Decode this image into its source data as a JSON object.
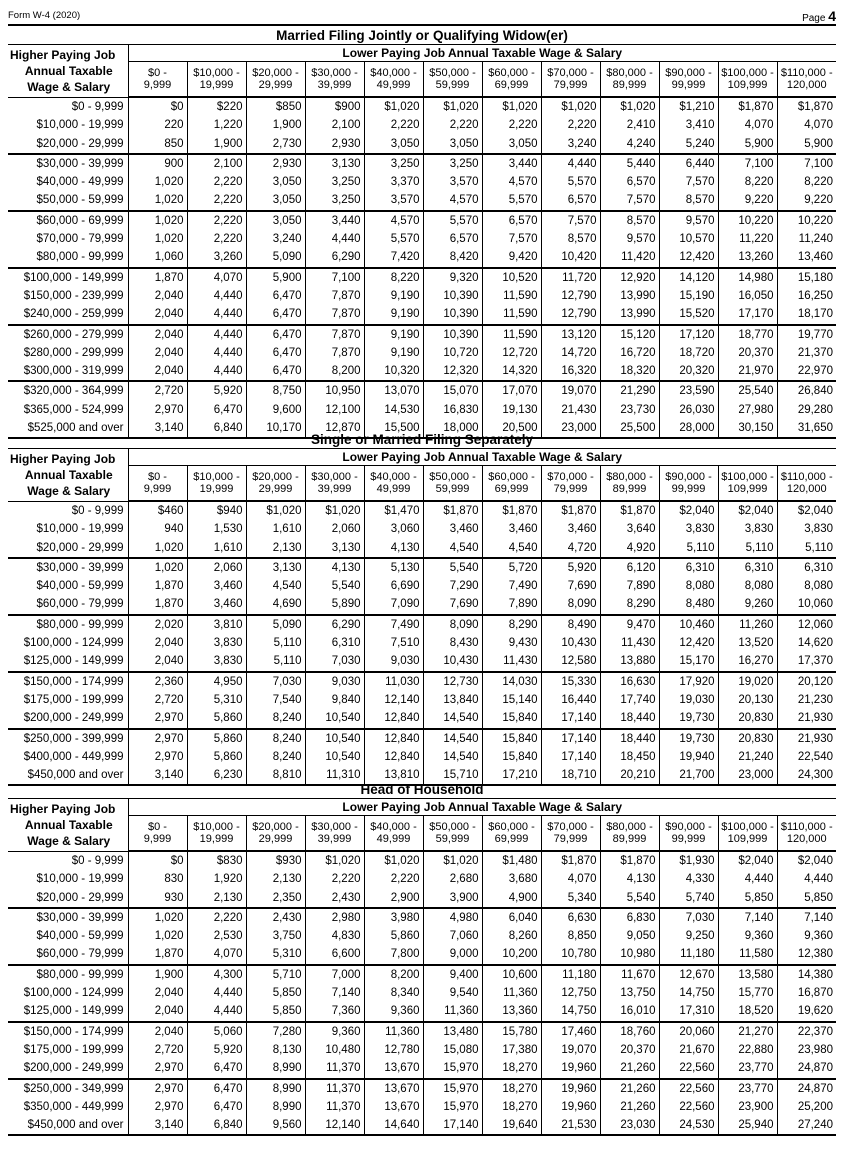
{
  "header": {
    "form": "Form W-4 (2020)",
    "page_word": "Page",
    "page_num": "4"
  },
  "col_header_corner": [
    "Higher Paying Job",
    "Annual Taxable",
    "Wage & Salary"
  ],
  "lower_header": "Lower Paying Job Annual Taxable Wage & Salary",
  "columns": [
    [
      "$0 -",
      "9,999"
    ],
    [
      "$10,000 -",
      "19,999"
    ],
    [
      "$20,000 -",
      "29,999"
    ],
    [
      "$30,000 -",
      "39,999"
    ],
    [
      "$40,000 -",
      "49,999"
    ],
    [
      "$50,000 -",
      "59,999"
    ],
    [
      "$60,000 -",
      "69,999"
    ],
    [
      "$70,000 -",
      "79,999"
    ],
    [
      "$80,000 -",
      "89,999"
    ],
    [
      "$90,000 -",
      "99,999"
    ],
    [
      "$100,000 -",
      "109,999"
    ],
    [
      "$110,000 -",
      "120,000"
    ]
  ],
  "sections": [
    {
      "title": "Married Filing Jointly or Qualifying Widow(er)",
      "groups": [
        3,
        3,
        3,
        3,
        3,
        3,
        3
      ],
      "rows": [
        {
          "label": "$0 -   9,999",
          "values": [
            "$0",
            "$220",
            "$850",
            "$900",
            "$1,020",
            "$1,020",
            "$1,020",
            "$1,020",
            "$1,020",
            "$1,210",
            "$1,870",
            "$1,870"
          ]
        },
        {
          "label": "$10,000 -  19,999",
          "values": [
            "220",
            "1,220",
            "1,900",
            "2,100",
            "2,220",
            "2,220",
            "2,220",
            "2,220",
            "2,410",
            "3,410",
            "4,070",
            "4,070"
          ]
        },
        {
          "label": "$20,000 -  29,999",
          "values": [
            "850",
            "1,900",
            "2,730",
            "2,930",
            "3,050",
            "3,050",
            "3,050",
            "3,240",
            "4,240",
            "5,240",
            "5,900",
            "5,900"
          ]
        },
        {
          "label": "$30,000 -  39,999",
          "values": [
            "900",
            "2,100",
            "2,930",
            "3,130",
            "3,250",
            "3,250",
            "3,440",
            "4,440",
            "5,440",
            "6,440",
            "7,100",
            "7,100"
          ]
        },
        {
          "label": "$40,000 -  49,999",
          "values": [
            "1,020",
            "2,220",
            "3,050",
            "3,250",
            "3,370",
            "3,570",
            "4,570",
            "5,570",
            "6,570",
            "7,570",
            "8,220",
            "8,220"
          ]
        },
        {
          "label": "$50,000 -  59,999",
          "values": [
            "1,020",
            "2,220",
            "3,050",
            "3,250",
            "3,570",
            "4,570",
            "5,570",
            "6,570",
            "7,570",
            "8,570",
            "9,220",
            "9,220"
          ]
        },
        {
          "label": "$60,000 -  69,999",
          "values": [
            "1,020",
            "2,220",
            "3,050",
            "3,440",
            "4,570",
            "5,570",
            "6,570",
            "7,570",
            "8,570",
            "9,570",
            "10,220",
            "10,220"
          ]
        },
        {
          "label": "$70,000 -  79,999",
          "values": [
            "1,020",
            "2,220",
            "3,240",
            "4,440",
            "5,570",
            "6,570",
            "7,570",
            "8,570",
            "9,570",
            "10,570",
            "11,220",
            "11,240"
          ]
        },
        {
          "label": "$80,000 -  99,999",
          "values": [
            "1,060",
            "3,260",
            "5,090",
            "6,290",
            "7,420",
            "8,420",
            "9,420",
            "10,420",
            "11,420",
            "12,420",
            "13,260",
            "13,460"
          ]
        },
        {
          "label": "$100,000 - 149,999",
          "values": [
            "1,870",
            "4,070",
            "5,900",
            "7,100",
            "8,220",
            "9,320",
            "10,520",
            "11,720",
            "12,920",
            "14,120",
            "14,980",
            "15,180"
          ]
        },
        {
          "label": "$150,000 - 239,999",
          "values": [
            "2,040",
            "4,440",
            "6,470",
            "7,870",
            "9,190",
            "10,390",
            "11,590",
            "12,790",
            "13,990",
            "15,190",
            "16,050",
            "16,250"
          ]
        },
        {
          "label": "$240,000 - 259,999",
          "values": [
            "2,040",
            "4,440",
            "6,470",
            "7,870",
            "9,190",
            "10,390",
            "11,590",
            "12,790",
            "13,990",
            "15,520",
            "17,170",
            "18,170"
          ]
        },
        {
          "label": "$260,000 - 279,999",
          "values": [
            "2,040",
            "4,440",
            "6,470",
            "7,870",
            "9,190",
            "10,390",
            "11,590",
            "13,120",
            "15,120",
            "17,120",
            "18,770",
            "19,770"
          ]
        },
        {
          "label": "$280,000 - 299,999",
          "values": [
            "2,040",
            "4,440",
            "6,470",
            "7,870",
            "9,190",
            "10,720",
            "12,720",
            "14,720",
            "16,720",
            "18,720",
            "20,370",
            "21,370"
          ]
        },
        {
          "label": "$300,000 - 319,999",
          "values": [
            "2,040",
            "4,440",
            "6,470",
            "8,200",
            "10,320",
            "12,320",
            "14,320",
            "16,320",
            "18,320",
            "20,320",
            "21,970",
            "22,970"
          ]
        },
        {
          "label": "$320,000 - 364,999",
          "values": [
            "2,720",
            "5,920",
            "8,750",
            "10,950",
            "13,070",
            "15,070",
            "17,070",
            "19,070",
            "21,290",
            "23,590",
            "25,540",
            "26,840"
          ]
        },
        {
          "label": "$365,000 - 524,999",
          "values": [
            "2,970",
            "6,470",
            "9,600",
            "12,100",
            "14,530",
            "16,830",
            "19,130",
            "21,430",
            "23,730",
            "26,030",
            "27,980",
            "29,280"
          ]
        },
        {
          "label": "$525,000 and over",
          "values": [
            "3,140",
            "6,840",
            "10,170",
            "12,870",
            "15,500",
            "18,000",
            "20,500",
            "23,000",
            "25,500",
            "28,000",
            "30,150",
            "31,650"
          ]
        }
      ]
    },
    {
      "title": "Single or Married Filing Separately",
      "groups": [
        3,
        3,
        3,
        3,
        4
      ],
      "rows": [
        {
          "label": "$0 -   9,999",
          "values": [
            "$460",
            "$940",
            "$1,020",
            "$1,020",
            "$1,470",
            "$1,870",
            "$1,870",
            "$1,870",
            "$1,870",
            "$2,040",
            "$2,040",
            "$2,040"
          ]
        },
        {
          "label": "$10,000 -  19,999",
          "values": [
            "940",
            "1,530",
            "1,610",
            "2,060",
            "3,060",
            "3,460",
            "3,460",
            "3,460",
            "3,640",
            "3,830",
            "3,830",
            "3,830"
          ]
        },
        {
          "label": "$20,000 -  29,999",
          "values": [
            "1,020",
            "1,610",
            "2,130",
            "3,130",
            "4,130",
            "4,540",
            "4,540",
            "4,720",
            "4,920",
            "5,110",
            "5,110",
            "5,110"
          ]
        },
        {
          "label": "$30,000 -  39,999",
          "values": [
            "1,020",
            "2,060",
            "3,130",
            "4,130",
            "5,130",
            "5,540",
            "5,720",
            "5,920",
            "6,120",
            "6,310",
            "6,310",
            "6,310"
          ]
        },
        {
          "label": "$40,000 -  59,999",
          "values": [
            "1,870",
            "3,460",
            "4,540",
            "5,540",
            "6,690",
            "7,290",
            "7,490",
            "7,690",
            "7,890",
            "8,080",
            "8,080",
            "8,080"
          ]
        },
        {
          "label": "$60,000 -  79,999",
          "values": [
            "1,870",
            "3,460",
            "4,690",
            "5,890",
            "7,090",
            "7,690",
            "7,890",
            "8,090",
            "8,290",
            "8,480",
            "9,260",
            "10,060"
          ]
        },
        {
          "label": "$80,000 -  99,999",
          "values": [
            "2,020",
            "3,810",
            "5,090",
            "6,290",
            "7,490",
            "8,090",
            "8,290",
            "8,490",
            "9,470",
            "10,460",
            "11,260",
            "12,060"
          ]
        },
        {
          "label": "$100,000 - 124,999",
          "values": [
            "2,040",
            "3,830",
            "5,110",
            "6,310",
            "7,510",
            "8,430",
            "9,430",
            "10,430",
            "11,430",
            "12,420",
            "13,520",
            "14,620"
          ]
        },
        {
          "label": "$125,000 - 149,999",
          "values": [
            "2,040",
            "3,830",
            "5,110",
            "7,030",
            "9,030",
            "10,430",
            "11,430",
            "12,580",
            "13,880",
            "15,170",
            "16,270",
            "17,370"
          ]
        },
        {
          "label": "$150,000 - 174,999",
          "values": [
            "2,360",
            "4,950",
            "7,030",
            "9,030",
            "11,030",
            "12,730",
            "14,030",
            "15,330",
            "16,630",
            "17,920",
            "19,020",
            "20,120"
          ]
        },
        {
          "label": "$175,000 - 199,999",
          "values": [
            "2,720",
            "5,310",
            "7,540",
            "9,840",
            "12,140",
            "13,840",
            "15,140",
            "16,440",
            "17,740",
            "19,030",
            "20,130",
            "21,230"
          ]
        },
        {
          "label": "$200,000 - 249,999",
          "values": [
            "2,970",
            "5,860",
            "8,240",
            "10,540",
            "12,840",
            "14,540",
            "15,840",
            "17,140",
            "18,440",
            "19,730",
            "20,830",
            "21,930"
          ]
        },
        {
          "label": "$250,000 - 399,999",
          "values": [
            "2,970",
            "5,860",
            "8,240",
            "10,540",
            "12,840",
            "14,540",
            "15,840",
            "17,140",
            "18,440",
            "19,730",
            "20,830",
            "21,930"
          ]
        },
        {
          "label": "$400,000 - 449,999",
          "values": [
            "2,970",
            "5,860",
            "8,240",
            "10,540",
            "12,840",
            "14,540",
            "15,840",
            "17,140",
            "18,450",
            "19,940",
            "21,240",
            "22,540"
          ]
        },
        {
          "label": "$450,000 and over",
          "values": [
            "3,140",
            "6,230",
            "8,810",
            "11,310",
            "13,810",
            "15,710",
            "17,210",
            "18,710",
            "20,210",
            "21,700",
            "23,000",
            "24,300"
          ]
        }
      ]
    },
    {
      "title": "Head of Household",
      "groups": [
        3,
        3,
        3,
        3,
        4
      ],
      "rows": [
        {
          "label": "$0 -   9,999",
          "values": [
            "$0",
            "$830",
            "$930",
            "$1,020",
            "$1,020",
            "$1,020",
            "$1,480",
            "$1,870",
            "$1,870",
            "$1,930",
            "$2,040",
            "$2,040"
          ]
        },
        {
          "label": "$10,000 -  19,999",
          "values": [
            "830",
            "1,920",
            "2,130",
            "2,220",
            "2,220",
            "2,680",
            "3,680",
            "4,070",
            "4,130",
            "4,330",
            "4,440",
            "4,440"
          ]
        },
        {
          "label": "$20,000 -  29,999",
          "values": [
            "930",
            "2,130",
            "2,350",
            "2,430",
            "2,900",
            "3,900",
            "4,900",
            "5,340",
            "5,540",
            "5,740",
            "5,850",
            "5,850"
          ]
        },
        {
          "label": "$30,000 -  39,999",
          "values": [
            "1,020",
            "2,220",
            "2,430",
            "2,980",
            "3,980",
            "4,980",
            "6,040",
            "6,630",
            "6,830",
            "7,030",
            "7,140",
            "7,140"
          ]
        },
        {
          "label": "$40,000 -  59,999",
          "values": [
            "1,020",
            "2,530",
            "3,750",
            "4,830",
            "5,860",
            "7,060",
            "8,260",
            "8,850",
            "9,050",
            "9,250",
            "9,360",
            "9,360"
          ]
        },
        {
          "label": "$60,000 -  79,999",
          "values": [
            "1,870",
            "4,070",
            "5,310",
            "6,600",
            "7,800",
            "9,000",
            "10,200",
            "10,780",
            "10,980",
            "11,180",
            "11,580",
            "12,380"
          ]
        },
        {
          "label": "$80,000 -  99,999",
          "values": [
            "1,900",
            "4,300",
            "5,710",
            "7,000",
            "8,200",
            "9,400",
            "10,600",
            "11,180",
            "11,670",
            "12,670",
            "13,580",
            "14,380"
          ]
        },
        {
          "label": "$100,000 - 124,999",
          "values": [
            "2,040",
            "4,440",
            "5,850",
            "7,140",
            "8,340",
            "9,540",
            "11,360",
            "12,750",
            "13,750",
            "14,750",
            "15,770",
            "16,870"
          ]
        },
        {
          "label": "$125,000 - 149,999",
          "values": [
            "2,040",
            "4,440",
            "5,850",
            "7,360",
            "9,360",
            "11,360",
            "13,360",
            "14,750",
            "16,010",
            "17,310",
            "18,520",
            "19,620"
          ]
        },
        {
          "label": "$150,000 - 174,999",
          "values": [
            "2,040",
            "5,060",
            "7,280",
            "9,360",
            "11,360",
            "13,480",
            "15,780",
            "17,460",
            "18,760",
            "20,060",
            "21,270",
            "22,370"
          ]
        },
        {
          "label": "$175,000 - 199,999",
          "values": [
            "2,720",
            "5,920",
            "8,130",
            "10,480",
            "12,780",
            "15,080",
            "17,380",
            "19,070",
            "20,370",
            "21,670",
            "22,880",
            "23,980"
          ]
        },
        {
          "label": "$200,000 - 249,999",
          "values": [
            "2,970",
            "6,470",
            "8,990",
            "11,370",
            "13,670",
            "15,970",
            "18,270",
            "19,960",
            "21,260",
            "22,560",
            "23,770",
            "24,870"
          ]
        },
        {
          "label": "$250,000 - 349,999",
          "values": [
            "2,970",
            "6,470",
            "8,990",
            "11,370",
            "13,670",
            "15,970",
            "18,270",
            "19,960",
            "21,260",
            "22,560",
            "23,770",
            "24,870"
          ]
        },
        {
          "label": "$350,000 - 449,999",
          "values": [
            "2,970",
            "6,470",
            "8,990",
            "11,370",
            "13,670",
            "15,970",
            "18,270",
            "19,960",
            "21,260",
            "22,560",
            "23,900",
            "25,200"
          ]
        },
        {
          "label": "$450,000 and over",
          "values": [
            "3,140",
            "6,840",
            "9,560",
            "12,140",
            "14,640",
            "17,140",
            "19,640",
            "21,530",
            "23,030",
            "24,530",
            "25,940",
            "27,240"
          ]
        }
      ]
    }
  ]
}
